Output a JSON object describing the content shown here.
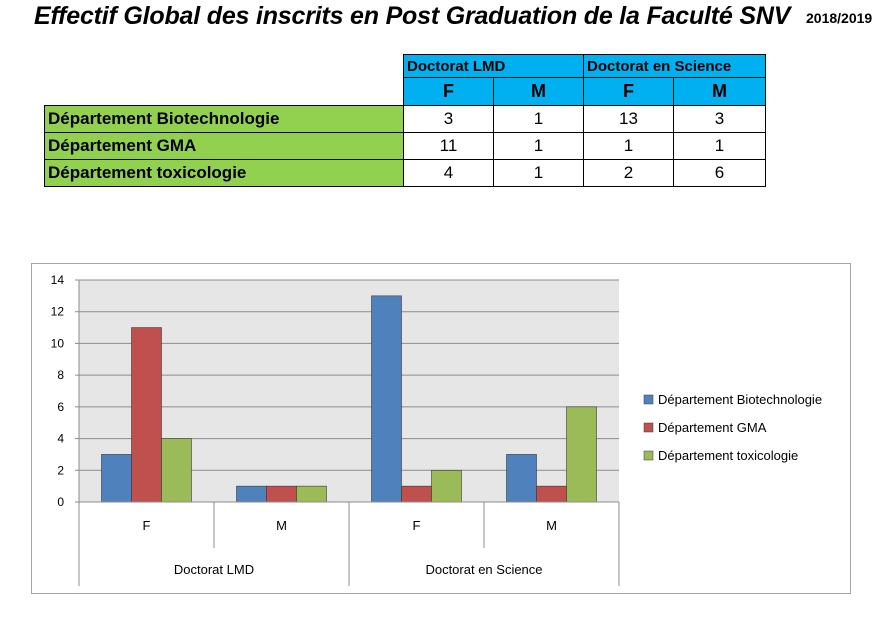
{
  "header": {
    "title": "Effectif Global des inscrits en Post Graduation de la Faculté SNV",
    "year": "2018/2019"
  },
  "table": {
    "groups": [
      "Doctorat LMD",
      "Doctorat en Science"
    ],
    "subheaders": [
      "F",
      "M",
      "F",
      "M"
    ],
    "rows": [
      {
        "label": "Département Biotechnologie",
        "values": [
          "3",
          "1",
          "13",
          "3"
        ]
      },
      {
        "label": "Département GMA",
        "values": [
          "11",
          "1",
          "1",
          "1"
        ]
      },
      {
        "label": "Département toxicologie",
        "values": [
          "4",
          "1",
          "2",
          "6"
        ]
      }
    ]
  },
  "chart_data": {
    "type": "bar",
    "categories": [
      "F",
      "M",
      "F",
      "M"
    ],
    "groups": [
      {
        "label": "Doctorat LMD",
        "categories": [
          "F",
          "M"
        ]
      },
      {
        "label": "Doctorat en Science",
        "categories": [
          "F",
          "M"
        ]
      }
    ],
    "series": [
      {
        "name": "Département Biotechnologie",
        "values": [
          3,
          1,
          13,
          3
        ],
        "color": "#4f81bd"
      },
      {
        "name": "Département GMA",
        "values": [
          11,
          1,
          1,
          1
        ],
        "color": "#c0504d"
      },
      {
        "name": "Département toxicologie",
        "values": [
          4,
          1,
          2,
          6
        ],
        "color": "#9bbb59"
      }
    ],
    "ylim": [
      0,
      14
    ],
    "yticks": [
      0,
      2,
      4,
      6,
      8,
      10,
      12,
      14
    ],
    "grid": true,
    "plot_background": "#e6e6e6",
    "legend_position": "right"
  }
}
